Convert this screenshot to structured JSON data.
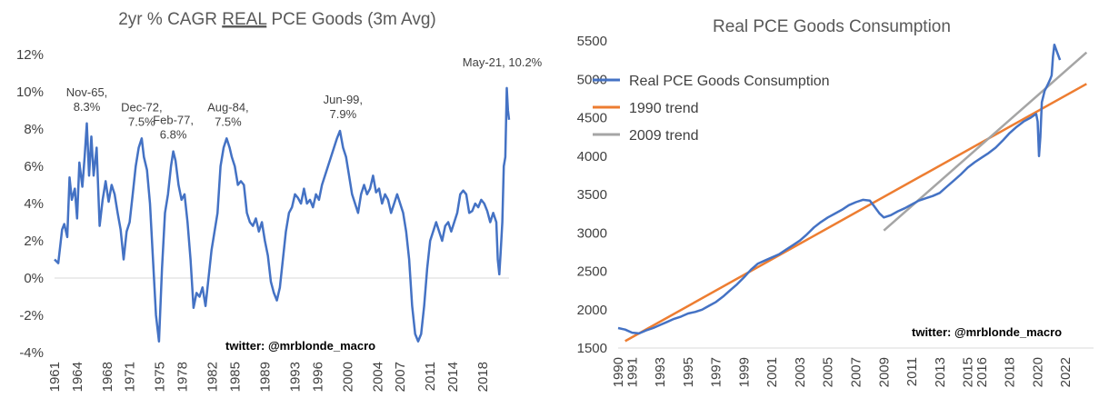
{
  "chart_data": [
    {
      "type": "line",
      "title_pre": "2yr % CAGR ",
      "title_underlined": "REAL",
      "title_post": " PCE Goods (3m Avg)",
      "ylim": [
        -4,
        12
      ],
      "yticks": [
        "12%",
        "10%",
        "8%",
        "6%",
        "4%",
        "2%",
        "0%",
        "-2%",
        "-4%"
      ],
      "ytick_values": [
        12,
        10,
        8,
        6,
        4,
        2,
        0,
        -2,
        -4
      ],
      "xlim": [
        1961,
        2021.5
      ],
      "xticks": [
        "1961",
        "1964",
        "1968",
        "1971",
        "1975",
        "1978",
        "1982",
        "1985",
        "1989",
        "1993",
        "1996",
        "2000",
        "2004",
        "2007",
        "2011",
        "2014",
        "2018"
      ],
      "xtick_values": [
        1961,
        1964,
        1968,
        1971,
        1975,
        1978,
        1982,
        1985,
        1989,
        1993,
        1996,
        2000,
        2004,
        2007,
        2011,
        2014,
        2018
      ],
      "series": [
        {
          "name": "2yr % CAGR Real PCE Goods",
          "color": "#4472C4",
          "x": [
            1961.0,
            1961.5,
            1962.0,
            1962.3,
            1962.7,
            1963.0,
            1963.3,
            1963.7,
            1964.0,
            1964.3,
            1964.7,
            1965.0,
            1965.3,
            1965.6,
            1965.9,
            1966.2,
            1966.6,
            1967.0,
            1967.4,
            1967.8,
            1968.2,
            1968.6,
            1969.0,
            1969.4,
            1969.8,
            1970.2,
            1970.6,
            1971.0,
            1971.4,
            1971.8,
            1972.2,
            1972.6,
            1972.9,
            1973.3,
            1973.7,
            1974.1,
            1974.5,
            1974.9,
            1975.3,
            1975.7,
            1976.1,
            1976.5,
            1976.8,
            1977.1,
            1977.5,
            1977.9,
            1978.3,
            1978.7,
            1979.1,
            1979.5,
            1979.9,
            1980.3,
            1980.7,
            1981.1,
            1981.5,
            1981.9,
            1982.3,
            1982.7,
            1983.1,
            1983.5,
            1983.9,
            1984.3,
            1984.6,
            1985.0,
            1985.4,
            1985.8,
            1986.2,
            1986.6,
            1987.0,
            1987.4,
            1987.8,
            1988.2,
            1988.6,
            1989.0,
            1989.4,
            1989.8,
            1990.2,
            1990.6,
            1991.0,
            1991.4,
            1991.8,
            1992.2,
            1992.6,
            1993.0,
            1993.4,
            1993.8,
            1994.2,
            1994.6,
            1995.0,
            1995.4,
            1995.8,
            1996.2,
            1996.6,
            1997.0,
            1997.4,
            1997.8,
            1998.2,
            1998.6,
            1999.0,
            1999.4,
            1999.8,
            2000.2,
            2000.6,
            2001.0,
            2001.4,
            2001.8,
            2002.2,
            2002.6,
            2003.0,
            2003.4,
            2003.8,
            2004.2,
            2004.6,
            2005.0,
            2005.4,
            2005.8,
            2006.2,
            2006.6,
            2007.0,
            2007.4,
            2007.8,
            2008.2,
            2008.6,
            2009.0,
            2009.4,
            2009.8,
            2010.2,
            2010.6,
            2011.0,
            2011.4,
            2011.8,
            2012.2,
            2012.6,
            2013.0,
            2013.4,
            2013.8,
            2014.2,
            2014.6,
            2015.0,
            2015.4,
            2015.8,
            2016.2,
            2016.6,
            2017.0,
            2017.4,
            2017.8,
            2018.2,
            2018.6,
            2019.0,
            2019.4,
            2019.8,
            2020.0,
            2020.2,
            2020.4,
            2020.6,
            2020.8,
            2021.0,
            2021.2,
            2021.35,
            2021.5
          ],
          "y": [
            1.0,
            0.8,
            2.6,
            2.9,
            2.2,
            5.4,
            4.2,
            4.8,
            3.2,
            6.2,
            4.9,
            6.5,
            8.3,
            5.5,
            7.6,
            5.5,
            7.0,
            2.8,
            4.2,
            5.2,
            4.1,
            5.0,
            4.5,
            3.5,
            2.6,
            1.0,
            2.5,
            3.0,
            4.5,
            6.0,
            7.0,
            7.5,
            6.5,
            5.8,
            4.0,
            1.0,
            -2.0,
            -3.4,
            0.5,
            3.5,
            4.5,
            6.0,
            6.8,
            6.3,
            5.0,
            4.2,
            4.5,
            3.0,
            1.0,
            -1.6,
            -0.8,
            -1.0,
            -0.5,
            -1.5,
            0.0,
            1.5,
            2.5,
            3.5,
            6.0,
            7.0,
            7.5,
            7.0,
            6.5,
            6.0,
            5.0,
            5.2,
            5.0,
            3.5,
            3.0,
            2.8,
            3.2,
            2.5,
            3.0,
            2.0,
            1.2,
            -0.2,
            -0.8,
            -1.2,
            -0.5,
            1.0,
            2.5,
            3.5,
            3.8,
            4.5,
            4.3,
            4.0,
            4.8,
            4.0,
            4.2,
            3.8,
            4.5,
            4.2,
            5.0,
            5.5,
            6.0,
            6.5,
            7.0,
            7.5,
            7.9,
            7.0,
            6.5,
            5.5,
            4.5,
            4.0,
            3.5,
            4.5,
            5.0,
            4.5,
            4.8,
            5.5,
            4.6,
            4.8,
            4.0,
            4.5,
            4.2,
            3.5,
            4.0,
            4.5,
            4.0,
            3.5,
            2.5,
            1.0,
            -1.5,
            -3.0,
            -3.4,
            -3.0,
            -1.5,
            0.5,
            2.0,
            2.5,
            3.0,
            2.5,
            2.0,
            2.8,
            3.0,
            2.5,
            3.0,
            3.5,
            4.5,
            4.7,
            4.5,
            3.5,
            3.6,
            4.0,
            3.8,
            4.2,
            4.0,
            3.6,
            3.0,
            3.5,
            3.0,
            1.0,
            0.2,
            1.5,
            3.0,
            6.0,
            6.5,
            10.2,
            9.0,
            8.5
          ]
        }
      ],
      "annotations": [
        {
          "line1": "Nov-65,",
          "line2": "8.3%",
          "x": 1965.3,
          "y": 8.3
        },
        {
          "line1": "Dec-72,",
          "line2": "7.5%",
          "x": 1972.6,
          "y": 7.5
        },
        {
          "line1": "Feb-77,",
          "line2": "6.8%",
          "x": 1976.8,
          "y": 6.8
        },
        {
          "line1": "Aug-84,",
          "line2": "7.5%",
          "x": 1984.1,
          "y": 7.5
        },
        {
          "line1": "Jun-99,",
          "line2": "7.9%",
          "x": 1999.4,
          "y": 7.9
        },
        {
          "line1": "May-21, 10.2%",
          "line2": "",
          "x": 2021.2,
          "y": 10.2
        }
      ],
      "credit": "twitter: @mrblonde_macro"
    },
    {
      "type": "line",
      "title": "Real PCE Goods Consumption",
      "ylim": [
        1500,
        5500
      ],
      "yticks": [
        "5500",
        "5000",
        "4500",
        "4000",
        "3500",
        "3000",
        "2500",
        "2000",
        "1500"
      ],
      "ytick_values": [
        5500,
        5000,
        4500,
        4000,
        3500,
        3000,
        2500,
        2000,
        1500
      ],
      "xlim": [
        1990,
        2024
      ],
      "xticks": [
        "1990",
        "1991",
        "1993",
        "1995",
        "1997",
        "1999",
        "2001",
        "2003",
        "2005",
        "2007",
        "2009",
        "2011",
        "2013",
        "2015",
        "2016",
        "2018",
        "2020",
        "2022"
      ],
      "xtick_values": [
        1990,
        1991,
        1993,
        1995,
        1997,
        1999,
        2001,
        2003,
        2005,
        2007,
        2009,
        2011,
        2013,
        2015,
        2016,
        2018,
        2020,
        2022
      ],
      "legend": {
        "position": "top-left",
        "items": [
          "Real PCE Goods Consumption",
          "1990 trend",
          "2009 trend"
        ]
      },
      "series": [
        {
          "name": "1990 trend",
          "color": "#ED7D31",
          "x": [
            1990.5,
            2023.5
          ],
          "y": [
            1590,
            4940
          ]
        },
        {
          "name": "2009 trend",
          "color": "#A5A5A5",
          "x": [
            2009.0,
            2023.5
          ],
          "y": [
            3030,
            5350
          ]
        },
        {
          "name": "Real PCE Goods Consumption",
          "color": "#4472C4",
          "x": [
            1990.0,
            1990.5,
            1991.0,
            1991.5,
            1992.0,
            1992.5,
            1993.0,
            1993.5,
            1994.0,
            1994.5,
            1995.0,
            1995.5,
            1996.0,
            1996.5,
            1997.0,
            1997.5,
            1998.0,
            1998.5,
            1999.0,
            1999.5,
            2000.0,
            2000.5,
            2001.0,
            2001.5,
            2002.0,
            2002.5,
            2003.0,
            2003.5,
            2004.0,
            2004.5,
            2005.0,
            2005.5,
            2006.0,
            2006.5,
            2007.0,
            2007.5,
            2008.0,
            2008.3,
            2008.7,
            2009.0,
            2009.5,
            2010.0,
            2010.5,
            2011.0,
            2011.5,
            2012.0,
            2012.5,
            2013.0,
            2013.5,
            2014.0,
            2014.5,
            2015.0,
            2015.5,
            2016.0,
            2016.5,
            2017.0,
            2017.5,
            2018.0,
            2018.5,
            2019.0,
            2019.5,
            2019.9,
            2020.0,
            2020.1,
            2020.2,
            2020.3,
            2020.5,
            2020.7,
            2020.9,
            2021.0,
            2021.1,
            2021.2,
            2021.4,
            2021.6
          ],
          "y": [
            1760,
            1740,
            1700,
            1690,
            1730,
            1760,
            1800,
            1840,
            1880,
            1910,
            1950,
            1970,
            2000,
            2050,
            2100,
            2170,
            2250,
            2330,
            2420,
            2520,
            2600,
            2640,
            2680,
            2720,
            2780,
            2840,
            2900,
            2980,
            3070,
            3140,
            3200,
            3250,
            3300,
            3360,
            3400,
            3430,
            3420,
            3350,
            3250,
            3200,
            3230,
            3280,
            3320,
            3370,
            3420,
            3450,
            3480,
            3520,
            3600,
            3680,
            3760,
            3850,
            3920,
            3980,
            4040,
            4110,
            4200,
            4300,
            4380,
            4450,
            4500,
            4550,
            4450,
            4000,
            4250,
            4700,
            4850,
            4920,
            5000,
            5050,
            5300,
            5450,
            5350,
            5250
          ]
        }
      ],
      "credit": "twitter: @mrblonde_macro"
    }
  ]
}
